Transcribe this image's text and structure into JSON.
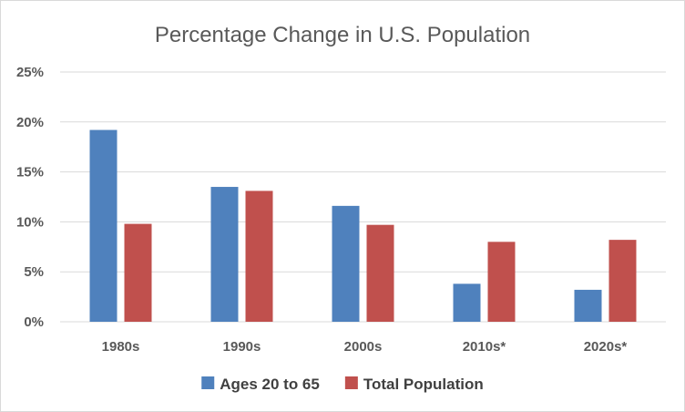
{
  "chart_data": {
    "type": "bar",
    "title": "Percentage Change in U.S. Population",
    "categories": [
      "1980s",
      "1990s",
      "2000s",
      "2010s*",
      "2020s*"
    ],
    "series": [
      {
        "name": "Ages 20 to 65",
        "color": "#4f81bd",
        "values": [
          19.2,
          13.5,
          11.6,
          3.8,
          3.2
        ]
      },
      {
        "name": "Total Population",
        "color": "#c0504d",
        "values": [
          9.8,
          13.1,
          9.7,
          8.0,
          8.2
        ]
      }
    ],
    "ylim": [
      0,
      25
    ],
    "yticks": [
      0,
      5,
      10,
      15,
      20,
      25
    ],
    "ytick_labels": [
      "0%",
      "5%",
      "10%",
      "15%",
      "20%",
      "25%"
    ],
    "xlabel": "",
    "ylabel": "",
    "grid": true,
    "legend": "bottom"
  }
}
